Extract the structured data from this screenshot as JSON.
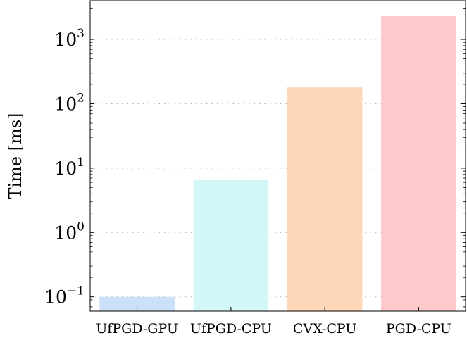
{
  "chart_data": {
    "type": "bar",
    "categories": [
      "UfPGD-GPU",
      "UfPGD-CPU",
      "CVX-CPU",
      "PGD-CPU"
    ],
    "values": [
      0.1,
      6.5,
      180,
      2300
    ],
    "colors": [
      "#cde0f9",
      "#d3f6f6",
      "#fed6b8",
      "#fec9ca"
    ],
    "ylabel": "Time [ms]",
    "yscale": "log",
    "ylim": [
      0.06,
      4000
    ],
    "yticks": [
      {
        "value": 0.1,
        "base": "10",
        "exp": "−1"
      },
      {
        "value": 1,
        "base": "10",
        "exp": "0"
      },
      {
        "value": 10,
        "base": "10",
        "exp": "1"
      },
      {
        "value": 100,
        "base": "10",
        "exp": "2"
      },
      {
        "value": 1000,
        "base": "10",
        "exp": "3"
      }
    ],
    "grid": "horizontal-dotted"
  }
}
